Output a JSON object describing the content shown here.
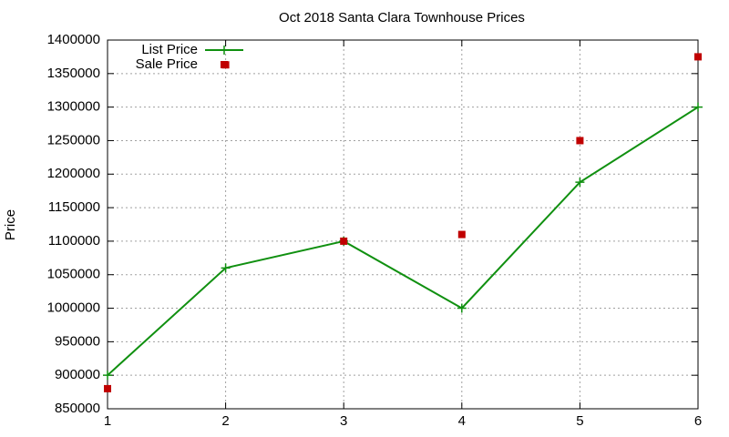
{
  "chart_data": {
    "type": "line",
    "title": "Oct 2018 Santa Clara Townhouse Prices",
    "ylabel": "Price",
    "x": [
      1,
      2,
      3,
      4,
      5,
      6
    ],
    "series": [
      {
        "name": "List Price",
        "color": "#109010",
        "mode": "lines+markers",
        "values": [
          900000,
          1060000,
          1100000,
          1000000,
          1188000,
          1300000
        ]
      },
      {
        "name": "Sale Price",
        "color": "#c00000",
        "mode": "markers",
        "values": [
          880000,
          1363000,
          1100000,
          1110000,
          1250000,
          1375000
        ]
      }
    ],
    "xlim": [
      1,
      6
    ],
    "xticks": [
      1,
      2,
      3,
      4,
      5,
      6
    ],
    "ylim": [
      850000,
      1400000
    ],
    "yticks": [
      850000,
      900000,
      950000,
      1000000,
      1050000,
      1100000,
      1150000,
      1200000,
      1250000,
      1300000,
      1350000,
      1400000
    ],
    "grid": true,
    "legend": "top-left"
  }
}
